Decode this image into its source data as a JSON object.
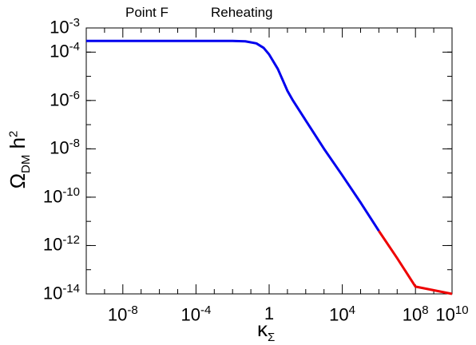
{
  "header": {
    "left_text": "Point F",
    "right_text": "Reheating"
  },
  "axes": {
    "xlabel_main": "κ",
    "xlabel_sub": "Σ",
    "ylabel_main": "Ω",
    "ylabel_sub": "DM",
    "ylabel_tail": " h",
    "ylabel_sup": "2"
  },
  "chart_data": {
    "type": "line",
    "x_scale": "log",
    "y_scale": "log",
    "xlim": [
      1e-10,
      10000000000.0
    ],
    "ylim": [
      1e-14,
      0.001
    ],
    "x_ticks": [
      {
        "value": 1e-08,
        "base": "10",
        "exp": "-8"
      },
      {
        "value": 0.0001,
        "base": "10",
        "exp": "-4"
      },
      {
        "value": 1,
        "base": "1",
        "exp": ""
      },
      {
        "value": 10000.0,
        "base": "10",
        "exp": "4"
      },
      {
        "value": 100000000.0,
        "base": "10",
        "exp": "8"
      },
      {
        "value": 10000000000.0,
        "base": "10",
        "exp": "10"
      }
    ],
    "y_ticks": [
      {
        "value": 0.001,
        "base": "10",
        "exp": "-3"
      },
      {
        "value": 0.0001,
        "base": "10",
        "exp": "-4"
      },
      {
        "value": 1e-06,
        "base": "10",
        "exp": "-6"
      },
      {
        "value": 1e-08,
        "base": "10",
        "exp": "-8"
      },
      {
        "value": 1e-10,
        "base": "10",
        "exp": "-10"
      },
      {
        "value": 1e-12,
        "base": "10",
        "exp": "-12"
      },
      {
        "value": 1e-14,
        "base": "10",
        "exp": "-14"
      }
    ],
    "grid": false,
    "series": [
      {
        "color": "#0000ee",
        "points": [
          [
            1e-10,
            0.00029
          ],
          [
            0.01,
            0.00029
          ],
          [
            0.05,
            0.00028
          ],
          [
            0.2,
            0.00023
          ],
          [
            0.5,
            0.00015
          ],
          [
            1,
            8e-05
          ],
          [
            3,
            2e-05
          ],
          [
            10,
            2.5e-06
          ],
          [
            20,
            1e-06
          ],
          [
            100,
            1.5e-07
          ],
          [
            1000.0,
            1e-08
          ],
          [
            10000.0,
            8e-10
          ],
          [
            100000.0,
            6e-11
          ],
          [
            1000000.0,
            4e-12
          ]
        ]
      },
      {
        "color": "#ee0000",
        "points": [
          [
            1000000.0,
            4e-12
          ],
          [
            10000000.0,
            3e-13
          ],
          [
            100000000.0,
            2e-14
          ],
          [
            10000000000.0,
            1e-14
          ]
        ]
      }
    ]
  }
}
